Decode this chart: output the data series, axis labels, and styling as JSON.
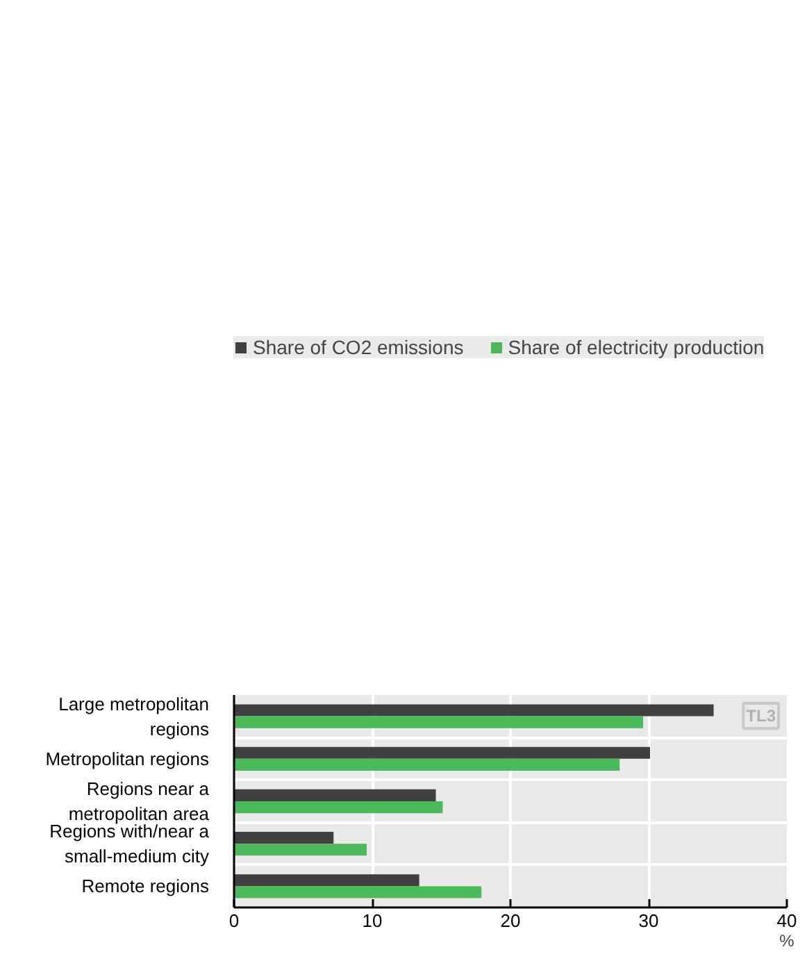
{
  "chart_data": {
    "type": "bar",
    "orientation": "horizontal",
    "categories": [
      "Large metropolitan regions",
      "Metropolitan regions",
      "Regions near a metropolitan area",
      "Regions with/near a small-medium city",
      "Remote regions"
    ],
    "series": [
      {
        "name": "Share of CO2 emissions",
        "color": "#404040",
        "values": [
          34.7,
          30.1,
          14.6,
          7.2,
          13.4
        ]
      },
      {
        "name": "Share of electricity production",
        "color": "#4ab957",
        "values": [
          29.6,
          27.9,
          15.1,
          9.6,
          17.9
        ]
      }
    ],
    "xlabel": "%",
    "xlim": [
      0,
      40
    ],
    "xticks": [
      0,
      10,
      20,
      30,
      40
    ],
    "grid": true,
    "legend": "top",
    "annotations": [
      "TL3"
    ]
  }
}
